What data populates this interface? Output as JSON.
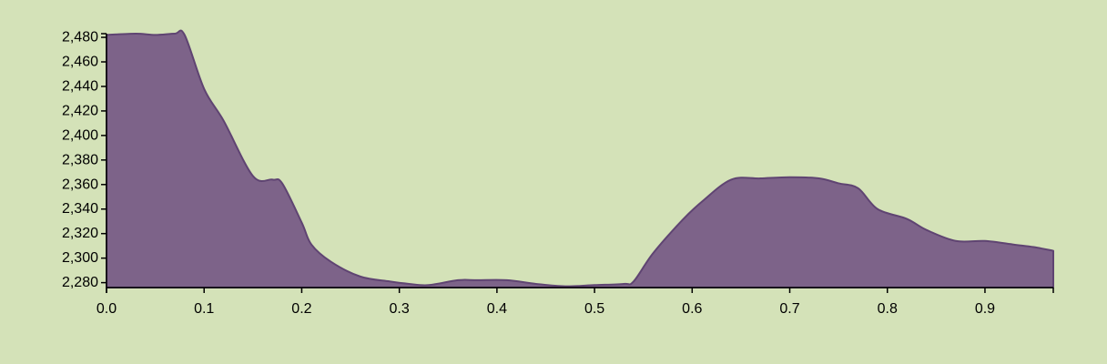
{
  "colors": {
    "background": "#d4e2b8",
    "area_fill": "#7d6389",
    "area_stroke": "#5f4472",
    "axis": "#000000"
  },
  "chart_data": {
    "type": "area",
    "title": "",
    "xlabel": "",
    "ylabel": "",
    "xlim": [
      0,
      0.97
    ],
    "ylim": [
      2276,
      2483
    ],
    "grid": false,
    "x_ticks": [
      0.0,
      0.1,
      0.2,
      0.3,
      0.4,
      0.5,
      0.6,
      0.7,
      0.8,
      0.9
    ],
    "x_tick_labels": [
      "0.0",
      "0.1",
      "0.2",
      "0.3",
      "0.4",
      "0.5",
      "0.6",
      "0.7",
      "0.8",
      "0.9"
    ],
    "y_ticks": [
      2280,
      2300,
      2320,
      2340,
      2360,
      2380,
      2400,
      2420,
      2440,
      2460,
      2480
    ],
    "y_tick_labels": [
      "2,280",
      "2,300",
      "2,320",
      "2,340",
      "2,360",
      "2,380",
      "2,400",
      "2,420",
      "2,440",
      "2,460",
      "2,480"
    ],
    "series": [
      {
        "x": [
          0.0,
          0.03,
          0.05,
          0.07,
          0.08,
          0.1,
          0.12,
          0.15,
          0.17,
          0.18,
          0.2,
          0.21,
          0.23,
          0.26,
          0.29,
          0.31,
          0.33,
          0.36,
          0.38,
          0.41,
          0.44,
          0.47,
          0.5,
          0.53,
          0.54,
          0.56,
          0.59,
          0.61,
          0.64,
          0.67,
          0.7,
          0.73,
          0.75,
          0.77,
          0.79,
          0.82,
          0.84,
          0.87,
          0.9,
          0.93,
          0.95,
          0.97
        ],
        "y": [
          2482,
          2483,
          2482,
          2483,
          2482,
          2438,
          2412,
          2367,
          2364,
          2361,
          2329,
          2311,
          2297,
          2285,
          2281,
          2279,
          2278,
          2282,
          2282,
          2282,
          2279,
          2277,
          2278,
          2279,
          2281,
          2304,
          2331,
          2346,
          2364,
          2365,
          2366,
          2365,
          2361,
          2357,
          2340,
          2332,
          2323,
          2314,
          2314,
          2311,
          2309,
          2306
        ]
      }
    ]
  }
}
